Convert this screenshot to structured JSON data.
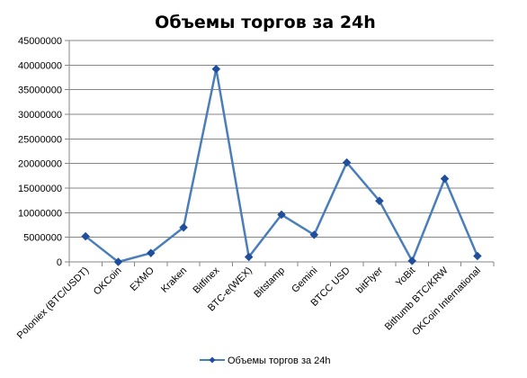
{
  "chart_data": {
    "type": "line",
    "title": "Объемы торгов за 24h",
    "xlabel": "",
    "ylabel": "",
    "categories": [
      "Poloniex (BTC/USDT)",
      "OKCoin",
      "EXMO",
      "Kraken",
      "Bitfinex",
      "BTC-e(WEX)",
      "Bitstamp",
      "Gemini",
      "BTCC USD",
      "bitFlyer",
      "YoBit",
      "Bithumb BTC/KRW",
      "OKCoin International"
    ],
    "series": [
      {
        "name": "Объемы торгов за 24h",
        "values": [
          5200000,
          0,
          1800000,
          7000000,
          39200000,
          1000000,
          9600000,
          5500000,
          20200000,
          12400000,
          200000,
          16900000,
          1200000
        ]
      }
    ],
    "ylim": [
      0,
      45000000
    ],
    "yticks": [
      0,
      5000000,
      10000000,
      15000000,
      20000000,
      25000000,
      30000000,
      35000000,
      40000000,
      45000000
    ],
    "ytick_labels": [
      "0",
      "5000000",
      "10000000",
      "15000000",
      "20000000",
      "25000000",
      "30000000",
      "35000000",
      "40000000",
      "45000000"
    ],
    "grid": true,
    "legend_position": "bottom",
    "line_color": "#4a7ebb",
    "marker_color": "#1f4e9c",
    "grid_color": "#868686"
  }
}
